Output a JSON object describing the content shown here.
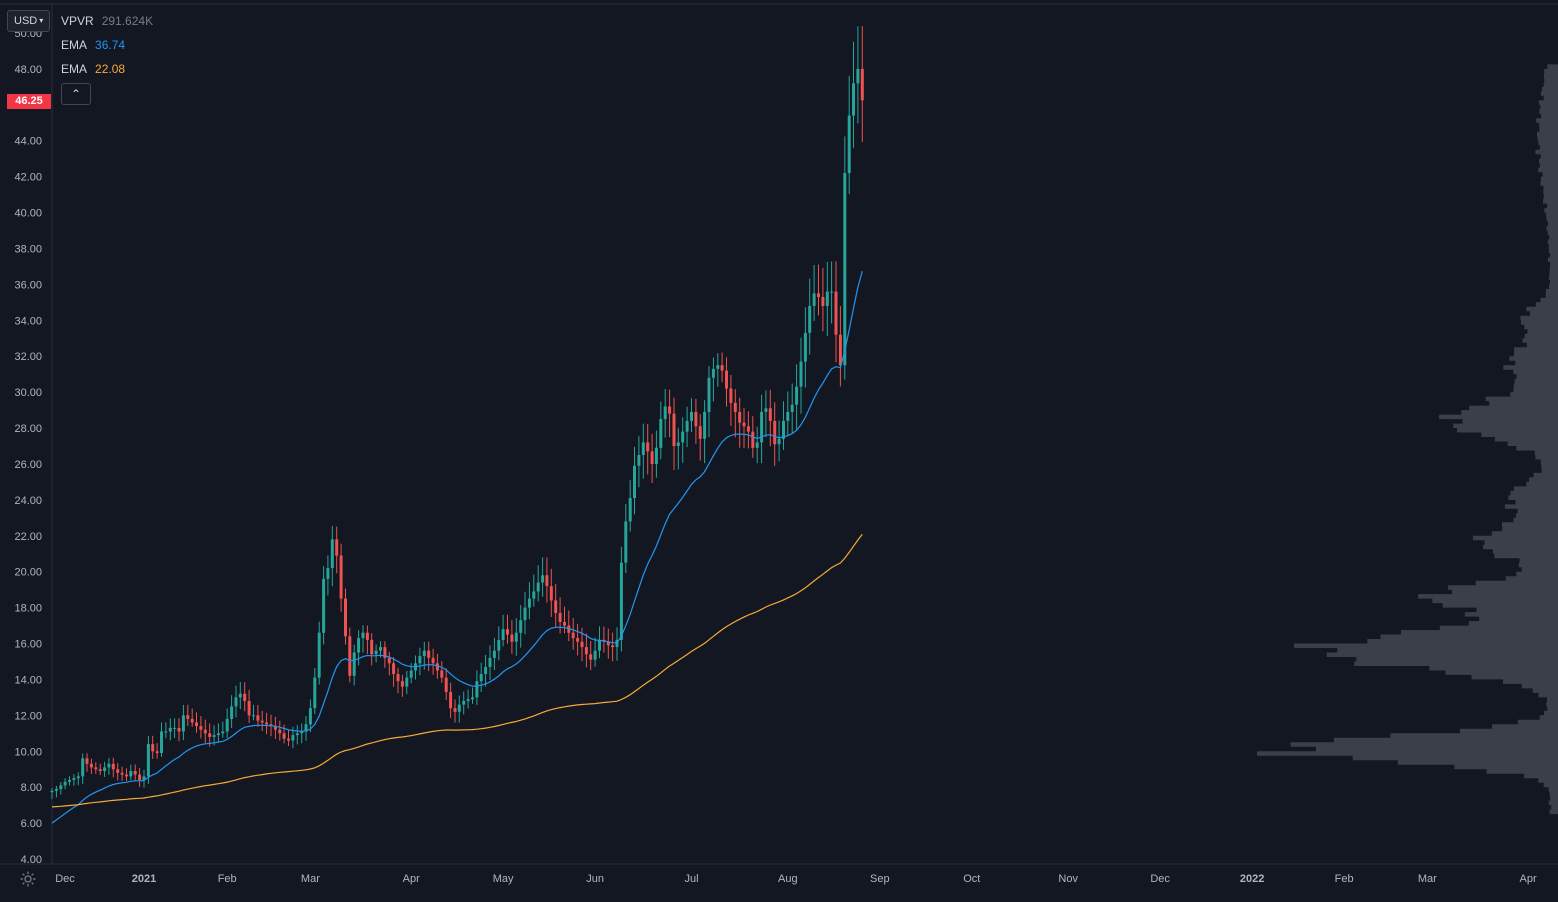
{
  "toolbar": {
    "currency": "USD"
  },
  "legend": {
    "vpvr": {
      "name": "VPVR",
      "value": "291.624K"
    },
    "ema_fast": {
      "name": "EMA",
      "value": "36.74",
      "color": "#2196f3"
    },
    "ema_slow": {
      "name": "EMA",
      "value": "22.08",
      "color": "#f7a937"
    }
  },
  "price_tag": {
    "value": "46.25",
    "color": "#f23645"
  },
  "colors": {
    "up": "#26a69a",
    "down": "#ef5350",
    "background": "#131722",
    "grid": "#1e222d",
    "volume_profile": "#434651"
  },
  "chart_data": {
    "type": "candlestick",
    "y_ticks": [
      "4.00",
      "6.00",
      "8.00",
      "10.00",
      "12.00",
      "14.00",
      "16.00",
      "18.00",
      "20.00",
      "22.00",
      "24.00",
      "26.00",
      "28.00",
      "30.00",
      "32.00",
      "34.00",
      "36.00",
      "38.00",
      "40.00",
      "42.00",
      "44.00",
      "46.00",
      "48.00",
      "50.00"
    ],
    "ylim": [
      4,
      50
    ],
    "x_labels": [
      "Dec",
      "2021",
      "Feb",
      "Mar",
      "Apr",
      "May",
      "Jun",
      "Jul",
      "Aug",
      "Sep",
      "Oct",
      "Nov",
      "Dec",
      "2022",
      "Feb",
      "Mar",
      "Apr"
    ],
    "x_index": [
      0,
      21,
      40,
      59,
      82,
      103,
      124,
      146,
      168,
      189,
      210,
      232,
      253,
      274,
      295,
      314,
      337
    ],
    "candle_closes": [
      7.8,
      7.9,
      8.1,
      8.3,
      8.4,
      8.5,
      8.6,
      9.6,
      9.3,
      9.1,
      9,
      8.9,
      9.1,
      9.3,
      9,
      8.8,
      8.7,
      8.6,
      8.9,
      8.7,
      8.4,
      8.6,
      10.4,
      10,
      9.9,
      11.1,
      11.1,
      11.3,
      11.3,
      11.1,
      12,
      11.8,
      11.6,
      11.4,
      11.2,
      11,
      10.8,
      10.9,
      11,
      11.1,
      11.8,
      12.5,
      13,
      13.2,
      12.8,
      12,
      12,
      11.7,
      11.6,
      11.5,
      11.4,
      11.2,
      11,
      10.7,
      10.6,
      10.9,
      11,
      11.1,
      11.5,
      12.4,
      14.1,
      16.6,
      19.6,
      20.2,
      21.8,
      20.9,
      18.5,
      16.4,
      14.2,
      15.5,
      16.3,
      16.6,
      16.2,
      15.4,
      15.6,
      15.8,
      15.2,
      14.9,
      14.3,
      13.9,
      13.6,
      14.1,
      14.5,
      14.9,
      15.3,
      15.6,
      15.2,
      14.9,
      14.5,
      14.1,
      13.3,
      12.4,
      12.2,
      12.6,
      12.8,
      12.9,
      13,
      13.9,
      14.3,
      14.7,
      15.2,
      15.6,
      16.2,
      16.8,
      16.5,
      16.1,
      16.6,
      17.3,
      18,
      18.5,
      18.9,
      19.4,
      19.8,
      19.2,
      18.4,
      17.7,
      17.2,
      17,
      16.6,
      16.3,
      16.1,
      15.8,
      15.4,
      15.1,
      15.6,
      16.2,
      16.1,
      15.9,
      15.8,
      16.2,
      20.5,
      22.8,
      24.1,
      25.9,
      26.5,
      27.2,
      26.7,
      26,
      26.9,
      28.5,
      29.2,
      28.8,
      27,
      27.2,
      27.8,
      28.4,
      28.9,
      28.1,
      27.4,
      28.9,
      30.8,
      31.3,
      31.5,
      31.2,
      30.2,
      29.4,
      28.9,
      28.3,
      28.1,
      27.8,
      26.9,
      27.2,
      28.9,
      29.1,
      28.4,
      27.1,
      27.4,
      28.4,
      28.9,
      29.3,
      30.3,
      31.7,
      33.3,
      34.8,
      35.5,
      35.3,
      34.8,
      35.6,
      35.6,
      33.2,
      31.5,
      42.2,
      45.4,
      47.2,
      48,
      46.25
    ],
    "ema_fast_last": 36.74,
    "ema_slow_last": 22.08,
    "y_axis_side": "left",
    "grid": true
  }
}
